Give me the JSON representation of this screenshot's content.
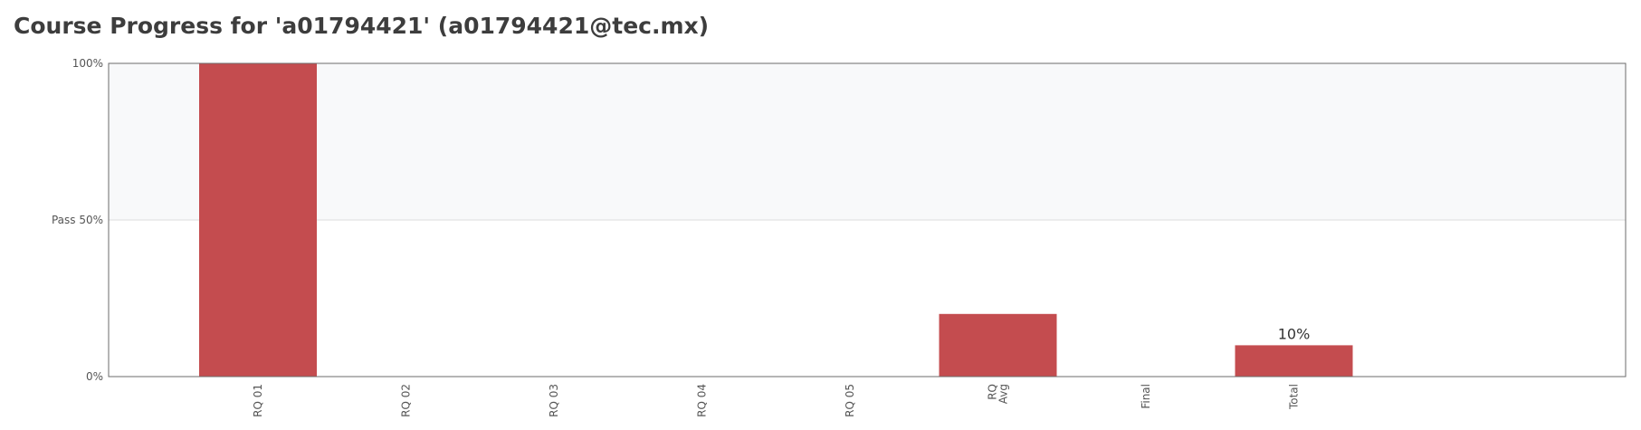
{
  "page": {
    "title": "Course Progress for 'a01794421' (a01794421@tec.mx)"
  },
  "chart_data": {
    "type": "bar",
    "title": "",
    "xlabel": "",
    "ylabel": "",
    "ylim": [
      0,
      100
    ],
    "yticks": [
      {
        "value": 100,
        "label": "100%"
      },
      {
        "value": 50,
        "label": "Pass 50%"
      },
      {
        "value": 0,
        "label": "0%"
      }
    ],
    "pass_threshold": 50,
    "categories": [
      {
        "label": "RQ 01"
      },
      {
        "label": "RQ 02"
      },
      {
        "label": "RQ 03"
      },
      {
        "label": "RQ 04"
      },
      {
        "label": "RQ 05"
      },
      {
        "label": "RQ\nAvg"
      },
      {
        "label": "Final"
      },
      {
        "label": "Total"
      }
    ],
    "values": [
      100,
      0,
      0,
      0,
      0,
      20,
      0,
      10
    ],
    "data_labels": [
      "",
      "",
      "",
      "",
      "",
      "",
      "",
      "10%"
    ],
    "grid": true,
    "colors": {
      "bar": "#c44c4f",
      "pass_band": "#f8f9fa",
      "grid": "#dddddd",
      "axis": "#6b6b6b"
    }
  }
}
